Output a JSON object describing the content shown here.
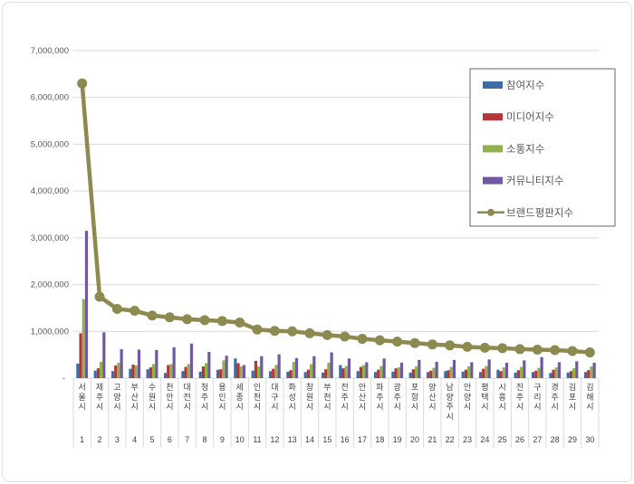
{
  "page": {
    "background": "#ffffff",
    "frame_border": "#e0e0e0"
  },
  "chart_data": {
    "type": "bar+line",
    "title": "",
    "categories": [
      "서울시",
      "제주시",
      "고양시",
      "부산시",
      "수원시",
      "천안시",
      "대전시",
      "청주시",
      "용인시",
      "세종시",
      "인천시",
      "대구시",
      "화성시",
      "창원시",
      "부천시",
      "전주시",
      "안산시",
      "파주시",
      "광주시",
      "포항시",
      "양산시",
      "남양주시",
      "안양시",
      "평택시",
      "시흥시",
      "진주시",
      "구리시",
      "경주시",
      "김포시",
      "김해시"
    ],
    "ranks": [
      "1",
      "2",
      "3",
      "4",
      "5",
      "6",
      "7",
      "8",
      "9",
      "10",
      "11",
      "12",
      "13",
      "14",
      "15",
      "16",
      "17",
      "18",
      "19",
      "20",
      "21",
      "22",
      "23",
      "24",
      "25",
      "26",
      "27",
      "28",
      "29",
      "30"
    ],
    "series": [
      {
        "name": "참여지수",
        "type": "bar",
        "color": "#3E6DA6",
        "values": [
          310000,
          160000,
          150000,
          200000,
          190000,
          110000,
          150000,
          140000,
          180000,
          420000,
          160000,
          150000,
          140000,
          130000,
          120000,
          280000,
          150000,
          130000,
          140000,
          120000,
          130000,
          150000,
          140000,
          130000,
          180000,
          120000,
          130000,
          110000,
          120000,
          130000
        ]
      },
      {
        "name": "미디어지수",
        "type": "bar",
        "color": "#B53538",
        "values": [
          960000,
          210000,
          270000,
          290000,
          230000,
          280000,
          240000,
          250000,
          190000,
          320000,
          370000,
          200000,
          170000,
          180000,
          190000,
          210000,
          240000,
          180000,
          210000,
          190000,
          160000,
          170000,
          180000,
          200000,
          150000,
          170000,
          160000,
          180000,
          150000,
          170000
        ]
      },
      {
        "name": "소통지수",
        "type": "bar",
        "color": "#92B14C",
        "values": [
          1690000,
          350000,
          330000,
          270000,
          300000,
          300000,
          300000,
          320000,
          380000,
          250000,
          250000,
          280000,
          350000,
          300000,
          330000,
          260000,
          280000,
          260000,
          230000,
          250000,
          220000,
          240000,
          250000,
          260000,
          230000,
          240000,
          220000,
          230000,
          210000,
          250000
        ]
      },
      {
        "name": "커뮤니티지수",
        "type": "bar",
        "color": "#7059A2",
        "values": [
          3150000,
          980000,
          620000,
          610000,
          600000,
          660000,
          740000,
          560000,
          480000,
          280000,
          470000,
          510000,
          430000,
          470000,
          550000,
          420000,
          340000,
          420000,
          330000,
          390000,
          350000,
          390000,
          340000,
          400000,
          330000,
          380000,
          450000,
          340000,
          360000,
          330000
        ]
      },
      {
        "name": "브랜드평판지수",
        "type": "line",
        "color": "#8D8A4F",
        "values": [
          6300000,
          1740000,
          1480000,
          1440000,
          1340000,
          1300000,
          1260000,
          1240000,
          1220000,
          1190000,
          1040000,
          1010000,
          1000000,
          960000,
          920000,
          890000,
          840000,
          810000,
          780000,
          750000,
          720000,
          700000,
          670000,
          650000,
          640000,
          620000,
          610000,
          600000,
          580000,
          550000
        ]
      }
    ],
    "y_axis": {
      "min": 0,
      "max": 7000000,
      "step": 1000000,
      "zero_label": "-",
      "tick_format": "thousands-comma"
    },
    "legend": {
      "position": "inside-top-right",
      "background": "#ffffff",
      "border_color": "#7f7f7f"
    },
    "grid": {
      "horizontal": true,
      "color": "#d9d9d9"
    },
    "category_separator_color": "#d9d9d9",
    "axis_label_color": "#404040",
    "tick_label_color": "#595959"
  }
}
